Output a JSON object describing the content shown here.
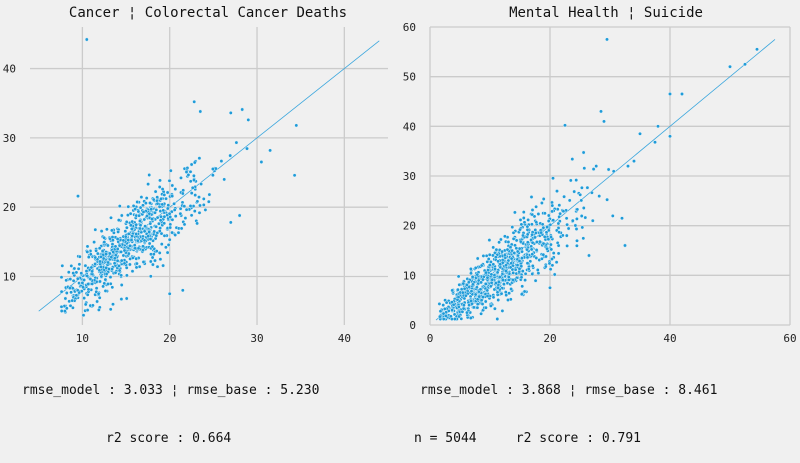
{
  "chart_data": [
    {
      "type": "scatter",
      "title": "Cancer ¦ Colorectal Cancer Deaths",
      "xlabel": "",
      "ylabel": "",
      "xlim": [
        4,
        45
      ],
      "ylim": [
        3,
        46
      ],
      "xticks": [
        10,
        20,
        30,
        40
      ],
      "yticks": [
        10,
        20,
        30,
        40
      ],
      "grid": true,
      "point_color": "#1f9bd8",
      "reference_line": {
        "from": [
          5,
          5
        ],
        "to": [
          44,
          44
        ],
        "color": "#3aa6dd"
      },
      "cloud": {
        "count": 800,
        "x_center": 15,
        "x_sd": 4.2,
        "x_min": 7.5,
        "x_max": 34,
        "slope": 0.95,
        "noise_sd": 2.6
      },
      "highlight_points": [
        [
          10.5,
          44.2
        ],
        [
          22.8,
          35.2
        ],
        [
          23.5,
          33.8
        ],
        [
          27,
          33.6
        ],
        [
          28.3,
          34.1
        ],
        [
          29,
          32.6
        ],
        [
          31.5,
          28.2
        ],
        [
          34.5,
          31.8
        ],
        [
          34.3,
          24.6
        ],
        [
          20,
          7.5
        ],
        [
          21.5,
          8
        ],
        [
          13.5,
          6
        ],
        [
          8,
          5
        ],
        [
          27,
          17.8
        ],
        [
          28,
          18.8
        ],
        [
          9.5,
          21.6
        ]
      ],
      "stats": {
        "line1": "rmse_model : 3.033 ¦ rmse_base : 5.230",
        "line2": "r2 score : 0.664"
      }
    },
    {
      "type": "scatter",
      "title": "Mental Health ¦ Suicide",
      "xlabel": "",
      "ylabel": "",
      "xlim": [
        0,
        60
      ],
      "ylim": [
        0,
        60
      ],
      "xticks": [
        0,
        20,
        40,
        60
      ],
      "yticks": [
        0,
        10,
        20,
        30,
        40,
        50,
        60
      ],
      "grid": true,
      "point_color": "#1f9bd8",
      "reference_line": {
        "from": [
          1,
          1
        ],
        "to": [
          57.5,
          57.5
        ],
        "color": "#3aa6dd"
      },
      "cloud": {
        "count": 900,
        "x_center": 11,
        "x_sd": 6.5,
        "x_min": 1.5,
        "x_max": 33,
        "slope": 0.92,
        "noise_sd": 3.4
      },
      "highlight_points": [
        [
          29.5,
          57.5
        ],
        [
          40,
          46.5
        ],
        [
          42,
          46.5
        ],
        [
          50,
          52
        ],
        [
          52.5,
          52.5
        ],
        [
          54.5,
          55.5
        ],
        [
          40,
          38
        ],
        [
          38,
          40
        ],
        [
          35,
          38.5
        ],
        [
          34,
          33
        ],
        [
          28.5,
          43
        ],
        [
          29,
          41
        ],
        [
          37.5,
          36.8
        ],
        [
          22.5,
          40.2
        ],
        [
          33,
          32
        ],
        [
          32,
          21.5
        ],
        [
          32.5,
          16
        ],
        [
          20,
          7.5
        ],
        [
          26.5,
          14
        ]
      ],
      "n_label": "n = 5044",
      "stats": {
        "line1": "rmse_model : 3.868 ¦ rmse_base : 8.461",
        "line2": "r2 score : 0.791"
      }
    }
  ]
}
